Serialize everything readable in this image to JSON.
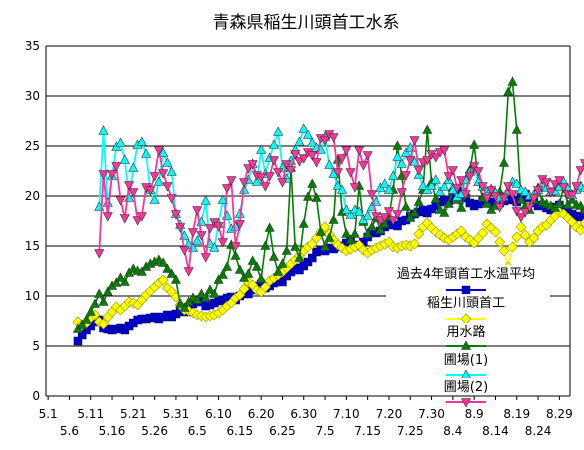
{
  "chart_data": {
    "type": "line",
    "title": "青森県稲生川頭首工水系",
    "xlabel": "",
    "ylabel": "",
    "ylim": [
      0,
      35
    ],
    "yticks": [
      0,
      5,
      10,
      15,
      20,
      25,
      30,
      35
    ],
    "grid": true,
    "legend_position": "inside-right",
    "x_tick_labels_top": [
      "5.1",
      "5.11",
      "5.21",
      "5.31",
      "6.10",
      "6.20",
      "6.30",
      "7.10",
      "7.20",
      "7.30",
      "8.9",
      "8.19",
      "8.29"
    ],
    "x_tick_labels_bottom": [
      "5.6",
      "5.16",
      "5.26",
      "6.5",
      "6.15",
      "6.25",
      "7.5",
      "7.15",
      "7.25",
      "8.4",
      "8.14",
      "8.24"
    ],
    "x_days_shown": 123,
    "x_start_day_index": 7,
    "series": [
      {
        "name": "過去4年頭首工水温平均",
        "color": "#0000cc",
        "marker": "square",
        "values": [
          5.5,
          6.1,
          6.6,
          7.0,
          7.4,
          7.6,
          6.8,
          6.7,
          6.6,
          6.7,
          6.8,
          6.6,
          7.0,
          7.3,
          7.6,
          7.7,
          7.7,
          7.8,
          7.9,
          7.7,
          7.9,
          8.1,
          7.9,
          8.2,
          8.4,
          8.6,
          8.4,
          9.2,
          9.6,
          9.4,
          9.0,
          9.1,
          9.3,
          9.6,
          9.5,
          9.8,
          9.9,
          9.6,
          10.0,
          10.3,
          10.2,
          10.6,
          11.0,
          11.2,
          10.8,
          11.0,
          11.3,
          11.6,
          11.4,
          12.0,
          12.4,
          12.8,
          12.6,
          13.0,
          13.4,
          13.8,
          14.4,
          14.6,
          14.5,
          14.8,
          14.7,
          14.9,
          15.0,
          15.3,
          15.6,
          15.1,
          15.0,
          15.4,
          15.9,
          16.4,
          16.3,
          16.5,
          16.9,
          17.4,
          17.1,
          17.0,
          17.5,
          17.6,
          18.0,
          18.2,
          18.4,
          18.6,
          18.3,
          18.7,
          19.0,
          19.4,
          19.6,
          19.5,
          20.2,
          20.6,
          20.4,
          19.8,
          19.3,
          19.0,
          19.2,
          19.5,
          19.7,
          19.4,
          19.1,
          19.3,
          19.5,
          19.7,
          19.6,
          19.4,
          19.9,
          20.2,
          19.8,
          19.3,
          19.0,
          19.1,
          18.8,
          18.6,
          18.9,
          19.1,
          18.7,
          18.4,
          18.2,
          18.0,
          17.9,
          18.3,
          18.5,
          18.1,
          18.3
        ]
      },
      {
        "name": "稲生川頭首工",
        "color": "#ffff00",
        "marker": "diamond",
        "values": [
          7.4,
          7.1,
          7.3,
          7.8,
          8.1,
          7.4,
          7.2,
          7.9,
          8.4,
          8.9,
          8.6,
          9.0,
          9.4,
          9.3,
          9.1,
          9.6,
          10.1,
          10.5,
          10.9,
          11.3,
          11.6,
          10.8,
          10.4,
          9.9,
          9.1,
          8.6,
          8.5,
          8.3,
          8.1,
          8.0,
          7.9,
          8.0,
          8.1,
          8.3,
          8.6,
          9.0,
          9.3,
          9.8,
          10.1,
          10.7,
          11.4,
          11.1,
          10.6,
          10.4,
          10.9,
          11.5,
          11.8,
          12.1,
          12.4,
          12.8,
          13.2,
          13.6,
          14.0,
          14.5,
          14.9,
          15.2,
          15.8,
          16.4,
          16.9,
          16.2,
          15.6,
          15.1,
          14.8,
          14.5,
          14.7,
          14.9,
          15.1,
          14.6,
          14.3,
          14.6,
          14.8,
          15.0,
          15.2,
          15.4,
          14.9,
          14.8,
          15.0,
          15.1,
          15.0,
          15.2,
          16.2,
          16.9,
          17.3,
          16.8,
          16.4,
          16.1,
          15.8,
          15.6,
          15.9,
          16.2,
          16.5,
          15.9,
          15.6,
          15.3,
          15.8,
          16.3,
          17.2,
          16.8,
          16.4,
          15.4,
          14.5,
          12.9,
          14.9,
          15.9,
          16.9,
          16.1,
          15.4,
          15.8,
          16.5,
          16.9,
          17.1,
          17.6,
          18.0,
          18.4,
          18.2,
          17.8,
          17.4,
          16.9,
          16.6,
          17.3,
          16.4,
          15.3,
          14.6
        ]
      },
      {
        "name": "用水路",
        "color": "#008000",
        "marker": "triangle-up",
        "values": [
          6.7,
          7.1,
          7.6,
          8.4,
          9.2,
          10.2,
          9.4,
          10.4,
          11.0,
          11.3,
          11.8,
          11.4,
          12.3,
          12.7,
          12.5,
          12.4,
          12.9,
          13.2,
          13.4,
          13.6,
          13.3,
          12.7,
          12.2,
          11.6,
          9.2,
          8.8,
          9.4,
          9.8,
          9.6,
          10.2,
          9.8,
          10.6,
          10.2,
          11.6,
          12.1,
          12.9,
          15.1,
          14.0,
          12.6,
          11.8,
          12.2,
          13.5,
          12.9,
          11.7,
          15.0,
          16.8,
          13.9,
          12.4,
          13.2,
          14.5,
          22.8,
          14.9,
          13.8,
          17.2,
          19.9,
          21.2,
          19.8,
          16.4,
          14.9,
          15.8,
          17.6,
          23.6,
          18.4,
          16.2,
          15.6,
          16.2,
          21.0,
          17.4,
          16.2,
          16.9,
          17.8,
          16.6,
          17.2,
          17.9,
          20.6,
          25.0,
          22.0,
          18.9,
          17.8,
          18.3,
          19.4,
          20.6,
          26.6,
          21.4,
          19.7,
          18.6,
          18.3,
          19.2,
          20.8,
          19.6,
          18.8,
          20.2,
          22.6,
          25.1,
          21.4,
          19.8,
          19.2,
          18.6,
          19.0,
          20.4,
          23.3,
          30.4,
          31.4,
          26.6,
          19.6,
          19.0,
          18.6,
          19.6,
          20.8,
          19.4,
          19.2,
          19.0,
          18.8,
          19.2,
          20.9,
          19.1,
          19.6,
          19.1,
          19.0,
          18.6,
          19.6,
          18.9,
          19.2
        ]
      },
      {
        "name": "圃場(1)",
        "color": "#00ffff",
        "marker": "triangle-up",
        "values": [
          null,
          null,
          null,
          null,
          null,
          18.9,
          26.5,
          19.3,
          22.0,
          24.9,
          25.3,
          23.6,
          19.8,
          22.8,
          25.1,
          25.4,
          24.2,
          20.6,
          19.6,
          21.4,
          24.3,
          23.3,
          22.4,
          18.2,
          17.1,
          16.0,
          15.1,
          14.8,
          15.5,
          17.4,
          19.5,
          15.2,
          14.8,
          17.2,
          19.6,
          18.0,
          16.7,
          16.9,
          18.2,
          20.6,
          21.6,
          23.2,
          21.4,
          24.6,
          22.2,
          23.8,
          25.1,
          26.4,
          22.8,
          21.7,
          23.5,
          24.6,
          25.4,
          26.7,
          26.1,
          25.3,
          24.8,
          24.6,
          25.9,
          23.1,
          22.2,
          21.0,
          20.6,
          18.6,
          18.1,
          18.6,
          18.4,
          17.6,
          18.0,
          18.9,
          19.4,
          20.8,
          21.2,
          20.6,
          22.0,
          23.9,
          23.2,
          24.3,
          24.8,
          23.4,
          22.1,
          21.0,
          20.6,
          21.0,
          21.6,
          20.4,
          20.9,
          21.6,
          20.6,
          19.9,
          20.2,
          21.6,
          22.4,
          22.8,
          21.4,
          20.9,
          20.4,
          20.7,
          20.3,
          19.8,
          19.9,
          20.6,
          21.4,
          21.2,
          20.6,
          20.4,
          20.0,
          20.1,
          20.6,
          21.0,
          20.8,
          20.4,
          20.5,
          20.9,
          21.4,
          20.7,
          20.1,
          20.6,
          21.0,
          20.8,
          20.4,
          20.0,
          20.3
        ]
      },
      {
        "name": "圃場(2)",
        "color": "#ff3399",
        "marker": "triangle-down",
        "values": [
          null,
          null,
          null,
          null,
          null,
          14.3,
          22.2,
          18.0,
          22.2,
          23.0,
          19.6,
          17.8,
          21.1,
          20.4,
          17.6,
          18.0,
          20.9,
          20.6,
          22.0,
          24.6,
          22.3,
          21.0,
          19.8,
          18.2,
          16.9,
          14.6,
          12.5,
          16.4,
          18.6,
          16.1,
          13.9,
          16.8,
          17.4,
          17.0,
          15.4,
          20.8,
          21.6,
          15.0,
          17.2,
          21.4,
          22.8,
          23.2,
          22.1,
          21.9,
          21.0,
          22.0,
          23.6,
          22.4,
          21.4,
          23.2,
          22.6,
          24.2,
          23.5,
          23.8,
          24.4,
          24.1,
          23.4,
          25.8,
          25.6,
          26.2,
          25.9,
          22.4,
          23.8,
          24.6,
          22.4,
          20.9,
          24.6,
          23.1,
          24.1,
          20.2,
          18.0,
          17.6,
          17.9,
          18.5,
          17.6,
          18.2,
          20.4,
          22.1,
          23.6,
          25.6,
          22.6,
          23.4,
          23.6,
          24.2,
          23.9,
          24.4,
          24.6,
          22.0,
          22.6,
          20.8,
          21.6,
          20.2,
          22.0,
          23.0,
          22.5,
          21.0,
          19.8,
          20.6,
          20.0,
          18.9,
          19.8,
          21.0,
          20.2,
          18.5,
          17.9,
          18.4,
          18.9,
          19.8,
          20.6,
          21.7,
          21.4,
          20.4,
          21.2,
          21.6,
          20.9,
          20.2,
          20.1,
          21.0,
          22.6,
          23.3,
          22.4,
          20.9,
          20.1
        ]
      }
    ]
  }
}
